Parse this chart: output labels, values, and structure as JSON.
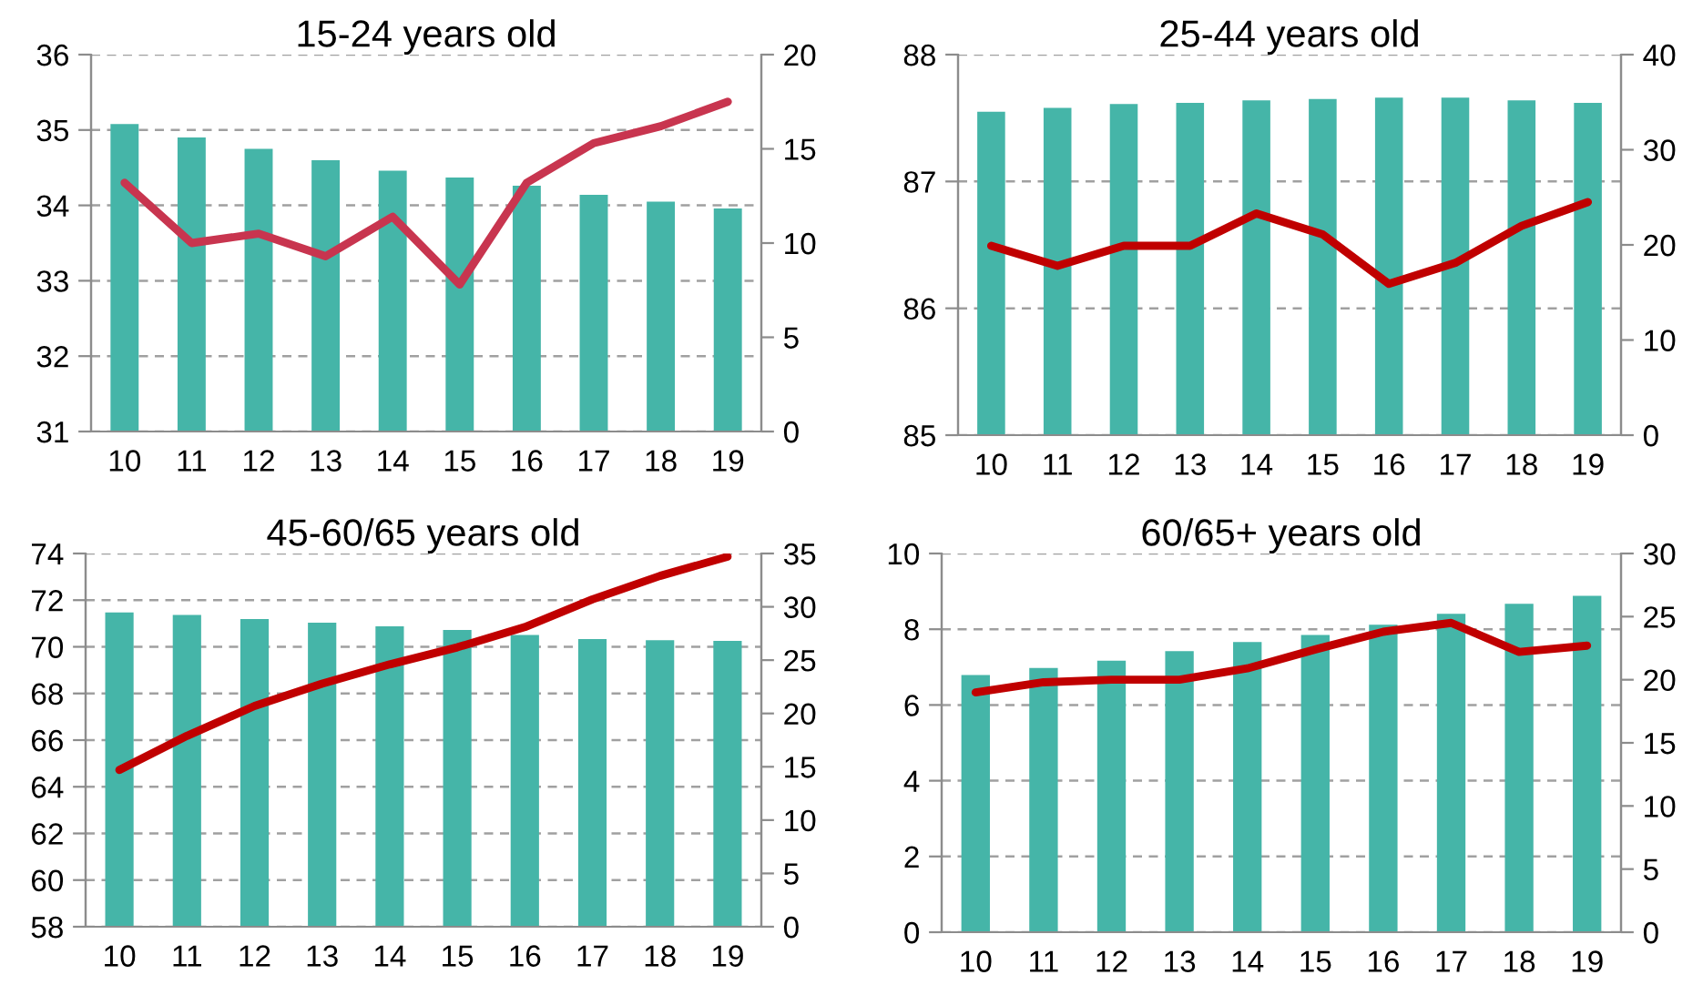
{
  "chart_data": [
    {
      "type": "bar",
      "title": "15-24 years old",
      "categories": [
        "10",
        "11",
        "12",
        "13",
        "14",
        "15",
        "16",
        "17",
        "18",
        "19"
      ],
      "series": [
        {
          "color": "#45b5a8",
          "values": [
            35.08,
            34.9,
            34.75,
            34.6,
            34.46,
            34.37,
            34.26,
            34.14,
            34.05,
            33.96
          ]
        },
        {
          "type": "line",
          "axis": "y2",
          "color": "#c8354f",
          "values": [
            13.2,
            10.0,
            10.5,
            9.3,
            11.4,
            7.8,
            13.2,
            15.3,
            16.2,
            17.5
          ]
        }
      ],
      "ylim": [
        31,
        36
      ],
      "yticks": [
        31,
        32,
        33,
        34,
        35,
        36
      ],
      "y2lim": [
        0,
        20
      ],
      "y2ticks": [
        0,
        5,
        10,
        15,
        20
      ],
      "grid": "y"
    },
    {
      "type": "bar",
      "title": "25-44 years old",
      "categories": [
        "10",
        "11",
        "12",
        "13",
        "14",
        "15",
        "16",
        "17",
        "18",
        "19"
      ],
      "series": [
        {
          "color": "#45b5a8",
          "values": [
            87.55,
            87.58,
            87.61,
            87.62,
            87.64,
            87.65,
            87.66,
            87.66,
            87.64,
            87.62
          ]
        },
        {
          "type": "line",
          "axis": "y2",
          "color": "#c00000",
          "values": [
            19.9,
            17.8,
            19.9,
            19.9,
            23.3,
            21.1,
            15.9,
            18.1,
            22.0,
            24.5
          ]
        }
      ],
      "ylim": [
        85,
        88
      ],
      "yticks": [
        85,
        86,
        87,
        88
      ],
      "y2lim": [
        0,
        40
      ],
      "y2ticks": [
        0,
        10,
        20,
        30,
        40
      ],
      "grid": "y"
    },
    {
      "type": "bar",
      "title": "45-60/65 years old",
      "categories": [
        "10",
        "11",
        "12",
        "13",
        "14",
        "15",
        "16",
        "17",
        "18",
        "19"
      ],
      "series": [
        {
          "color": "#45b5a8",
          "values": [
            71.47,
            71.37,
            71.19,
            71.03,
            70.88,
            70.72,
            70.51,
            70.33,
            70.28,
            70.25
          ]
        },
        {
          "type": "line",
          "axis": "y2",
          "color": "#c00000",
          "values": [
            14.7,
            17.9,
            20.7,
            22.8,
            24.6,
            26.2,
            28.1,
            30.7,
            32.9,
            34.7
          ]
        }
      ],
      "ylim": [
        58,
        74
      ],
      "yticks": [
        58,
        60,
        62,
        64,
        66,
        68,
        70,
        72,
        74
      ],
      "y2lim": [
        0,
        35
      ],
      "y2ticks": [
        0,
        5,
        10,
        15,
        20,
        25,
        30,
        35
      ],
      "grid": "y"
    },
    {
      "type": "bar",
      "title": "60/65+ years old",
      "categories": [
        "10",
        "11",
        "12",
        "13",
        "14",
        "15",
        "16",
        "17",
        "18",
        "19"
      ],
      "series": [
        {
          "color": "#45b5a8",
          "values": [
            6.79,
            6.98,
            7.17,
            7.42,
            7.66,
            7.85,
            8.12,
            8.41,
            8.67,
            8.88
          ]
        },
        {
          "type": "line",
          "axis": "y2",
          "color": "#c00000",
          "values": [
            19.0,
            19.8,
            20.0,
            20.0,
            20.9,
            22.4,
            23.8,
            24.5,
            22.2,
            22.7
          ]
        }
      ],
      "ylim": [
        0,
        10
      ],
      "yticks": [
        0,
        2,
        4,
        6,
        8,
        10
      ],
      "y2lim": [
        0,
        30
      ],
      "y2ticks": [
        0,
        5,
        10,
        15,
        20,
        25,
        30
      ],
      "grid": "y"
    }
  ]
}
